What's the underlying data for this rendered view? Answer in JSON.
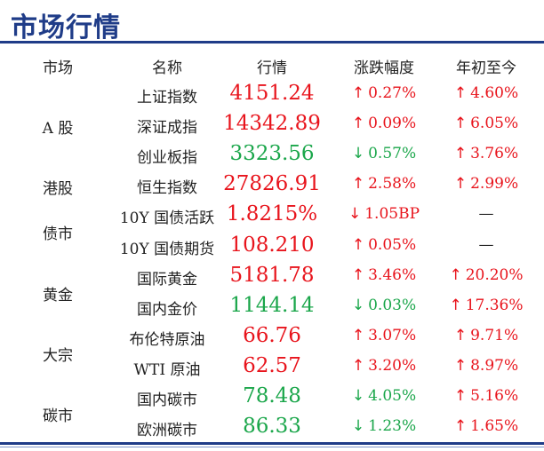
{
  "title": "市场行情",
  "headers": [
    "市场",
    "名称",
    "行情",
    "涨跌幅度",
    "年初至今"
  ],
  "colors": {
    "title": "#1f3c88",
    "up": "#e8141c",
    "down": "#1aa64a"
  },
  "groups": [
    {
      "market": "A 股",
      "span": [
        0,
        2
      ]
    },
    {
      "market": "港股",
      "span": [
        3,
        3
      ]
    },
    {
      "market": "债市",
      "span": [
        4,
        5
      ]
    },
    {
      "market": "黄金",
      "span": [
        6,
        7
      ]
    },
    {
      "market": "大宗",
      "span": [
        8,
        9
      ]
    },
    {
      "market": "碳市",
      "span": [
        10,
        11
      ]
    }
  ],
  "rows": [
    {
      "name": "上证指数",
      "value": "4151.24",
      "value_dir": "up",
      "chg_arrow": "↑",
      "chg": "0.27%",
      "chg_dir": "up",
      "ytd_arrow": "↑",
      "ytd": "4.60%",
      "ytd_dir": "up"
    },
    {
      "name": "深证成指",
      "value": "14342.89",
      "value_dir": "up",
      "chg_arrow": "↑",
      "chg": "0.09%",
      "chg_dir": "up",
      "ytd_arrow": "↑",
      "ytd": "6.05%",
      "ytd_dir": "up"
    },
    {
      "name": "创业板指",
      "value": "3323.56",
      "value_dir": "down",
      "chg_arrow": "↓",
      "chg": "0.57%",
      "chg_dir": "down",
      "ytd_arrow": "↑",
      "ytd": "3.76%",
      "ytd_dir": "up"
    },
    {
      "name": "恒生指数",
      "value": "27826.91",
      "value_dir": "up",
      "chg_arrow": "↑",
      "chg": "2.58%",
      "chg_dir": "up",
      "ytd_arrow": "↑",
      "ytd": "2.99%",
      "ytd_dir": "up"
    },
    {
      "name": "10Y 国债活跃",
      "value": "1.8215%",
      "value_dir": "up",
      "chg_arrow": "↓",
      "chg": "1.05BP",
      "chg_dir": "up",
      "ytd_arrow": "",
      "ytd": "—",
      "ytd_dir": "none"
    },
    {
      "name": "10Y 国债期货",
      "value": "108.210",
      "value_dir": "up",
      "chg_arrow": "↑",
      "chg": "0.05%",
      "chg_dir": "up",
      "ytd_arrow": "",
      "ytd": "—",
      "ytd_dir": "none"
    },
    {
      "name": "国际黄金",
      "value": "5181.78",
      "value_dir": "up",
      "chg_arrow": "↑",
      "chg": "3.46%",
      "chg_dir": "up",
      "ytd_arrow": "↑",
      "ytd": "20.20%",
      "ytd_dir": "up"
    },
    {
      "name": "国内金价",
      "value": "1144.14",
      "value_dir": "down",
      "chg_arrow": "↓",
      "chg": "0.03%",
      "chg_dir": "down",
      "ytd_arrow": "↑",
      "ytd": "17.36%",
      "ytd_dir": "up"
    },
    {
      "name": "布伦特原油",
      "value": "66.76",
      "value_dir": "up",
      "chg_arrow": "↑",
      "chg": "3.07%",
      "chg_dir": "up",
      "ytd_arrow": "↑",
      "ytd": "9.71%",
      "ytd_dir": "up"
    },
    {
      "name": "WTI 原油",
      "value": "62.57",
      "value_dir": "up",
      "chg_arrow": "↑",
      "chg": "3.20%",
      "chg_dir": "up",
      "ytd_arrow": "↑",
      "ytd": "8.97%",
      "ytd_dir": "up"
    },
    {
      "name": "国内碳市",
      "value": "78.48",
      "value_dir": "down",
      "chg_arrow": "↓",
      "chg": "4.05%",
      "chg_dir": "down",
      "ytd_arrow": "↑",
      "ytd": "5.16%",
      "ytd_dir": "up"
    },
    {
      "name": "欧洲碳市",
      "value": "86.33",
      "value_dir": "down",
      "chg_arrow": "↓",
      "chg": "1.23%",
      "chg_dir": "down",
      "ytd_arrow": "↑",
      "ytd": "1.65%",
      "ytd_dir": "up"
    }
  ]
}
